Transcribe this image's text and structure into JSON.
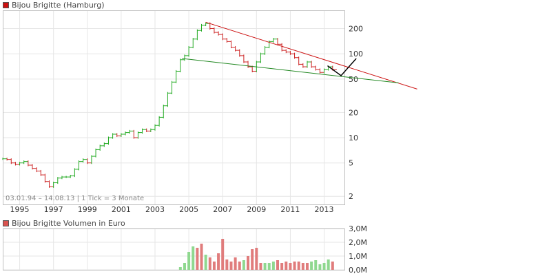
{
  "chart_data": [
    {
      "type": "line",
      "legend": "Bijou Brigitte (Hamburg)",
      "info": "03.01.94 – 14.08.13 | 1 Tick = 3 Monate",
      "x_ticks": [
        "1995",
        "1997",
        "1999",
        "2001",
        "2003",
        "2005",
        "2007",
        "2009",
        "2011",
        "2013"
      ],
      "y_ticks": [
        2,
        5,
        10,
        20,
        50,
        100,
        200
      ],
      "y_scale": "log",
      "ylim": [
        1.6,
        330
      ],
      "xlim": [
        1994.0,
        2014.2
      ],
      "grid": true,
      "colors": {
        "up": "#22aa22",
        "down": "#cc2222",
        "resistance": "#cc1111",
        "support": "#228822",
        "projection": "#000000"
      },
      "series": [
        {
          "x": [
            1994.0,
            1994.25,
            1994.5,
            1994.75,
            1995.0,
            1995.25,
            1995.5,
            1995.75,
            1996.0,
            1996.25,
            1996.5,
            1996.75,
            1997.0,
            1997.25,
            1997.5,
            1997.75,
            1998.0,
            1998.25,
            1998.5,
            1998.75,
            1999.0,
            1999.25,
            1999.5,
            1999.75,
            2000.0,
            2000.25,
            2000.5,
            2000.75,
            2001.0,
            2001.25,
            2001.5,
            2001.75,
            2002.0,
            2002.25,
            2002.5,
            2002.75,
            2003.0,
            2003.25,
            2003.5,
            2003.75,
            2004.0,
            2004.25,
            2004.5,
            2004.75,
            2005.0,
            2005.25,
            2005.5,
            2005.75,
            2006.0,
            2006.25,
            2006.5,
            2006.75,
            2007.0,
            2007.25,
            2007.5,
            2007.75,
            2008.0,
            2008.25,
            2008.5,
            2008.75,
            2009.0,
            2009.25,
            2009.5,
            2009.75,
            2010.0,
            2010.25,
            2010.5,
            2010.75,
            2011.0,
            2011.25,
            2011.5,
            2011.75,
            2012.0,
            2012.25,
            2012.5,
            2012.75,
            2013.0,
            2013.25,
            2013.5
          ],
          "values": [
            5.6,
            5.5,
            5.0,
            4.8,
            5.0,
            5.2,
            4.7,
            4.3,
            4.0,
            3.6,
            3.0,
            2.6,
            2.9,
            3.3,
            3.4,
            3.4,
            3.5,
            4.2,
            5.2,
            5.5,
            5.0,
            6.0,
            7.2,
            8.0,
            8.5,
            10.0,
            11.0,
            10.5,
            11.0,
            11.5,
            12.0,
            10.0,
            11.5,
            12.5,
            12.0,
            12.5,
            14.0,
            17.5,
            24.0,
            34.0,
            46.0,
            62.0,
            85.0,
            95.0,
            120.0,
            150.0,
            190.0,
            220.0,
            230.0,
            200.0,
            180.0,
            170.0,
            150.0,
            140.0,
            120.0,
            110.0,
            95.0,
            80.0,
            70.0,
            62.0,
            80.0,
            100.0,
            120.0,
            140.0,
            150.0,
            130.0,
            110.0,
            105.0,
            100.0,
            90.0,
            75.0,
            70.0,
            80.0,
            70.0,
            65.0,
            60.0,
            65.0,
            70.0,
            65.0
          ]
        }
      ],
      "trendlines": [
        {
          "name": "resistance",
          "x": [
            2006.0,
            2018.5
          ],
          "y": [
            238,
            38
          ]
        },
        {
          "name": "support",
          "x": [
            2004.6,
            2017.4
          ],
          "y": [
            88,
            45
          ]
        },
        {
          "name": "projection",
          "x": [
            2013.2,
            2014.0,
            2014.9
          ],
          "y": [
            72,
            55,
            88
          ]
        }
      ]
    },
    {
      "type": "bar",
      "legend": "Bijou Brigitte Volumen in Euro",
      "y_ticks": [
        "3,0M",
        "2,0M",
        "1,0M",
        "0,0M"
      ],
      "ylim": [
        0,
        3.0
      ],
      "unit": "M EUR",
      "x": [
        2004.5,
        2004.75,
        2005.0,
        2005.25,
        2005.5,
        2005.75,
        2006.0,
        2006.25,
        2006.5,
        2006.75,
        2007.0,
        2007.25,
        2007.5,
        2007.75,
        2008.0,
        2008.25,
        2008.5,
        2008.75,
        2009.0,
        2009.25,
        2009.5,
        2009.75,
        2010.0,
        2010.25,
        2010.5,
        2010.75,
        2011.0,
        2011.25,
        2011.5,
        2011.75,
        2012.0,
        2012.25,
        2012.5,
        2012.75,
        2013.0,
        2013.25,
        2013.5
      ],
      "values": [
        0.2,
        0.5,
        1.3,
        1.7,
        1.6,
        1.9,
        1.1,
        0.9,
        0.6,
        1.2,
        2.25,
        0.75,
        0.6,
        0.9,
        0.6,
        0.7,
        1.0,
        1.5,
        1.6,
        0.5,
        0.5,
        0.5,
        0.6,
        0.7,
        0.5,
        0.6,
        0.5,
        0.6,
        0.6,
        0.5,
        0.5,
        0.6,
        0.7,
        0.4,
        0.5,
        0.75,
        0.6
      ],
      "directions": [
        "u",
        "u",
        "u",
        "u",
        "d",
        "d",
        "u",
        "d",
        "d",
        "d",
        "d",
        "d",
        "d",
        "d",
        "d",
        "u",
        "d",
        "d",
        "d",
        "d",
        "u",
        "u",
        "u",
        "d",
        "d",
        "d",
        "d",
        "d",
        "d",
        "d",
        "d",
        "u",
        "u",
        "u",
        "u",
        "u",
        "d"
      ]
    }
  ]
}
